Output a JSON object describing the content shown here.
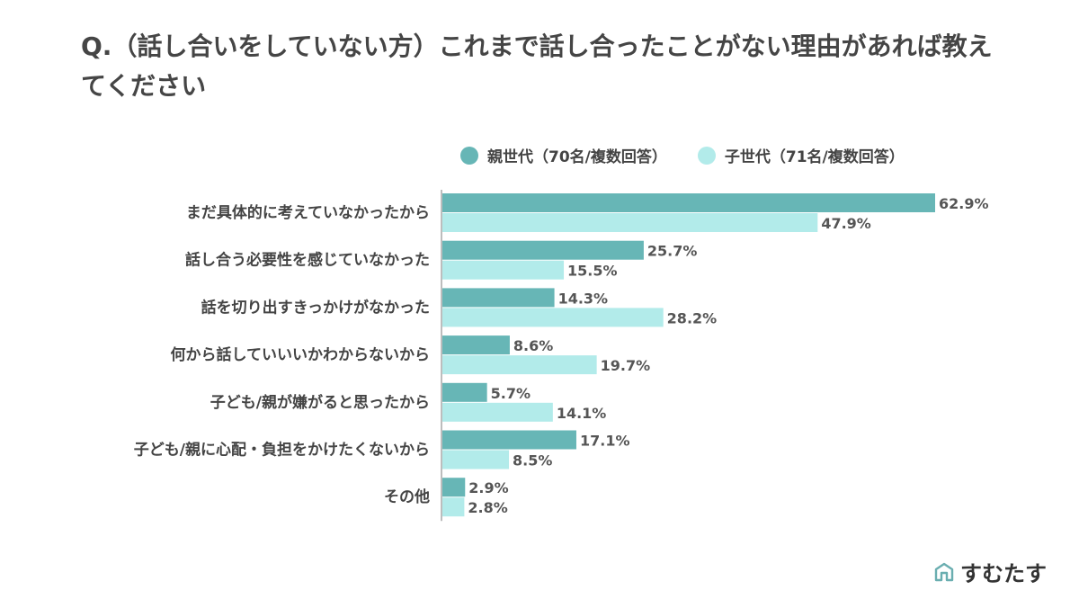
{
  "title": "Q.（話し合いをしていない方）これまで話し合ったことがない理由があれば教えてください",
  "brand": {
    "name": "すむたす"
  },
  "colors": {
    "parent": "#67b6b6",
    "child": "#b2ebea",
    "axis": "#bdbdbd"
  },
  "chart_data": {
    "type": "bar",
    "orientation": "horizontal",
    "categories": [
      "まだ具体的に考えていなかったから",
      "話し合う必要性を感じていなかった",
      "話を切り出すきっかけがなかった",
      "何から話していいいかわからないから",
      "子ども/親が嫌がると思ったから",
      "子ども/親に心配・負担をかけたくないから",
      "その他"
    ],
    "series": [
      {
        "name": "親世代（70名/複数回答）",
        "values": [
          62.9,
          25.7,
          14.3,
          8.6,
          5.7,
          17.1,
          2.9
        ]
      },
      {
        "name": "子世代（71名/複数回答）",
        "values": [
          47.9,
          15.5,
          28.2,
          19.7,
          14.1,
          8.5,
          2.8
        ]
      }
    ],
    "unit": "%",
    "legend_position": "top",
    "grid": false,
    "xlim": [
      0,
      62.9
    ]
  }
}
